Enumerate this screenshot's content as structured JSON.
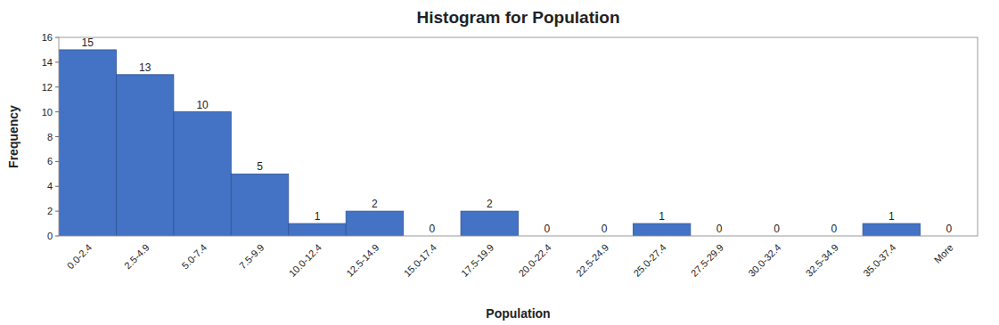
{
  "chart_data": {
    "type": "bar",
    "title": "Histogram for Population",
    "xlabel": "Population",
    "ylabel": "Frequency",
    "categories": [
      "0.0-2.4",
      "2.5-4.9",
      "5.0-7.4",
      "7.5-9.9",
      "10.0-12.4",
      "12.5-14.9",
      "15.0-17.4",
      "17.5-19.9",
      "20.0-22.4",
      "22.5-24.9",
      "25.0-27.4",
      "27.5-29.9",
      "30.0-32.4",
      "32.5-34.9",
      "35.0-37.4",
      "More"
    ],
    "values": [
      15,
      13,
      10,
      5,
      1,
      2,
      0,
      2,
      0,
      0,
      1,
      0,
      0,
      0,
      1,
      0
    ],
    "color": "#4472C4",
    "ylim": [
      0,
      16
    ],
    "yticks": [
      0,
      2,
      4,
      6,
      8,
      10,
      12,
      14,
      16
    ],
    "grid": false,
    "data_labels": true
  }
}
